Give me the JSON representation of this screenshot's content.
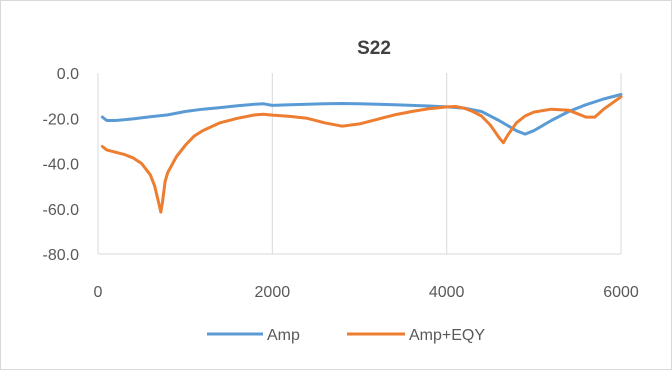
{
  "chart_data": {
    "type": "line",
    "title": "S22",
    "xlabel": "",
    "ylabel": "",
    "xlim": [
      0,
      6000
    ],
    "ylim": [
      -80,
      0
    ],
    "x_ticks": [
      "0",
      "2000",
      "4000",
      "6000"
    ],
    "x_tick_values": [
      0,
      2000,
      4000,
      6000
    ],
    "y_ticks": [
      "0.0",
      "-20.0",
      "-40.0",
      "-60.0",
      "-80.0"
    ],
    "y_tick_values": [
      0,
      -20,
      -40,
      -60,
      -80
    ],
    "grid": "vertical",
    "legend": "bottom",
    "series": [
      {
        "name": "Amp",
        "color": "#5b9bd5",
        "points": [
          [
            50,
            -19.5
          ],
          [
            100,
            -21
          ],
          [
            200,
            -21
          ],
          [
            400,
            -20.3
          ],
          [
            600,
            -19.3
          ],
          [
            800,
            -18.5
          ],
          [
            1000,
            -17
          ],
          [
            1200,
            -16
          ],
          [
            1400,
            -15.3
          ],
          [
            1600,
            -14.5
          ],
          [
            1800,
            -13.8
          ],
          [
            1900,
            -13.6
          ],
          [
            2000,
            -14.3
          ],
          [
            2200,
            -14
          ],
          [
            2400,
            -13.8
          ],
          [
            2600,
            -13.6
          ],
          [
            2800,
            -13.5
          ],
          [
            3000,
            -13.6
          ],
          [
            3200,
            -13.8
          ],
          [
            3400,
            -14
          ],
          [
            3600,
            -14.3
          ],
          [
            3800,
            -14.6
          ],
          [
            4000,
            -15
          ],
          [
            4200,
            -15.5
          ],
          [
            4400,
            -17
          ],
          [
            4600,
            -21
          ],
          [
            4800,
            -25.5
          ],
          [
            4900,
            -27
          ],
          [
            5000,
            -25.5
          ],
          [
            5200,
            -21
          ],
          [
            5400,
            -17
          ],
          [
            5600,
            -14
          ],
          [
            5800,
            -11.5
          ],
          [
            6000,
            -9.5
          ]
        ]
      },
      {
        "name": "Amp+EQY",
        "color": "#ed7d31",
        "points": [
          [
            50,
            -32.5
          ],
          [
            100,
            -34
          ],
          [
            200,
            -35
          ],
          [
            300,
            -36
          ],
          [
            400,
            -37.5
          ],
          [
            500,
            -40
          ],
          [
            600,
            -45
          ],
          [
            650,
            -50
          ],
          [
            700,
            -58
          ],
          [
            720,
            -61.5
          ],
          [
            740,
            -57
          ],
          [
            770,
            -48
          ],
          [
            800,
            -44
          ],
          [
            900,
            -37
          ],
          [
            1000,
            -32
          ],
          [
            1100,
            -28
          ],
          [
            1200,
            -25.5
          ],
          [
            1400,
            -22
          ],
          [
            1600,
            -20
          ],
          [
            1800,
            -18.5
          ],
          [
            1900,
            -18.2
          ],
          [
            2000,
            -18.6
          ],
          [
            2200,
            -19.2
          ],
          [
            2400,
            -20
          ],
          [
            2600,
            -22
          ],
          [
            2800,
            -23.5
          ],
          [
            3000,
            -22.5
          ],
          [
            3200,
            -20.5
          ],
          [
            3400,
            -18.5
          ],
          [
            3600,
            -17
          ],
          [
            3800,
            -15.8
          ],
          [
            4000,
            -15
          ],
          [
            4100,
            -14.8
          ],
          [
            4200,
            -15.5
          ],
          [
            4300,
            -17
          ],
          [
            4400,
            -19
          ],
          [
            4500,
            -23
          ],
          [
            4600,
            -28.5
          ],
          [
            4650,
            -30.8
          ],
          [
            4700,
            -27.5
          ],
          [
            4800,
            -22
          ],
          [
            4900,
            -19
          ],
          [
            5000,
            -17.3
          ],
          [
            5200,
            -16
          ],
          [
            5400,
            -16.5
          ],
          [
            5500,
            -18
          ],
          [
            5600,
            -19.5
          ],
          [
            5700,
            -19.5
          ],
          [
            5800,
            -16
          ],
          [
            6000,
            -10.5
          ]
        ]
      }
    ]
  }
}
